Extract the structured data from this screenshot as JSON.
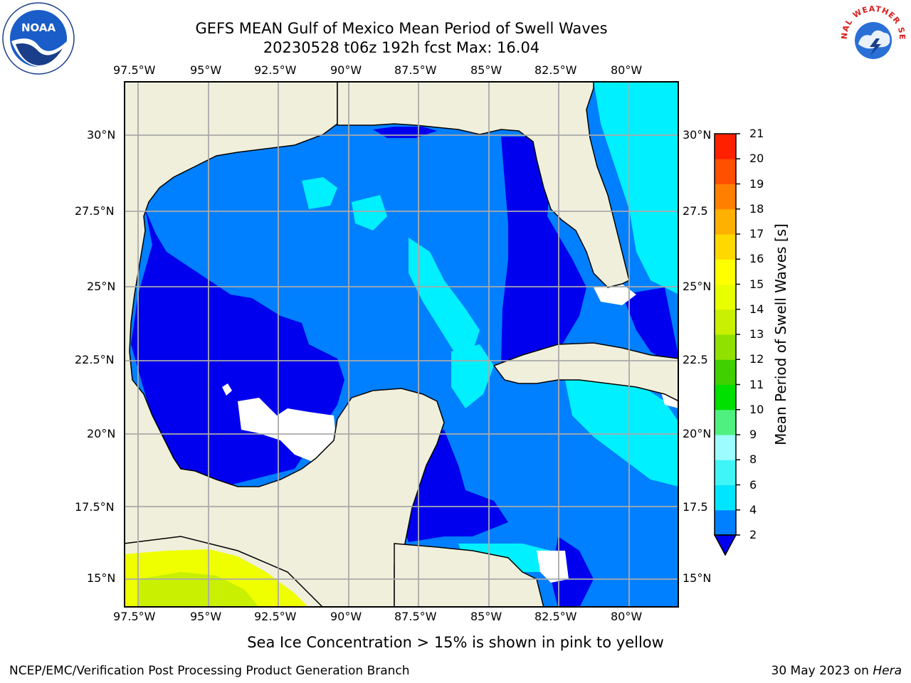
{
  "title_line1": "GEFS MEAN Gulf of Mexico Mean Period of Swell Waves",
  "title_line2": "20230528 t06z 192h fcst   Max: 16.04",
  "lon_labels": [
    "97.5°W",
    "95°W",
    "92.5°W",
    "90°W",
    "87.5°W",
    "85°W",
    "82.5°W",
    "80°W"
  ],
  "lat_labels_left": [
    "30°N",
    "27.5°N",
    "25°N",
    "22.5°N",
    "20°N",
    "17.5°N",
    "15°N"
  ],
  "lat_labels_right": [
    "30°N",
    "27.5",
    "25°N",
    "22.5",
    "20°N",
    "17.5",
    "15°N"
  ],
  "colorbar": {
    "label": "Mean Period of Swell Waves [s]",
    "ticks": [
      "2",
      "4",
      "6",
      "8",
      "9",
      "10",
      "11",
      "12",
      "13",
      "14",
      "15",
      "16",
      "17",
      "18",
      "19",
      "20",
      "21"
    ],
    "colors": [
      "#0000ee",
      "#0080ff",
      "#00e5ff",
      "#40f5f5",
      "#9cfcff",
      "#50f080",
      "#00e000",
      "#40d000",
      "#90e000",
      "#c8f000",
      "#e8ff00",
      "#ffff00",
      "#ffd800",
      "#ffb000",
      "#ff8000",
      "#ff5000",
      "#ff2000",
      "#ff0000"
    ]
  },
  "ice_note": "Sea Ice Concentration > 15% is shown in pink to yellow",
  "footer_left": "NCEP/EMC/Verification Post Processing Product Generation Branch",
  "footer_right_text": "30 May 2023 on ",
  "footer_right_italic": "Hera",
  "logos": {
    "left": "NOAA",
    "right": "NATIONAL WEATHER SERVICE"
  },
  "map_colors": {
    "land": "#efefdc",
    "deep_blue": "#0000ee",
    "mid_blue": "#0080ff",
    "cyan": "#00f0ff",
    "no_data": "#ffffff",
    "ice_yellow": "#f0ff00",
    "ice_green": "#c8f000",
    "grid": "#aaaaaa"
  }
}
